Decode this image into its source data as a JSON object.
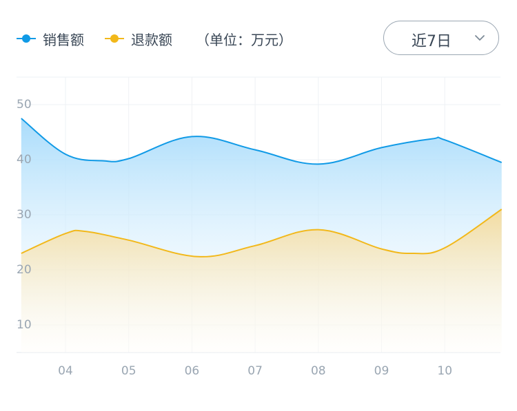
{
  "legend": {
    "sales_label": "销售额",
    "refund_label": "退款额",
    "unit_note": "（单位：万元）"
  },
  "range_select": {
    "value": "近7日",
    "icon": "chevron-down-icon"
  },
  "colors": {
    "sales": "#109ae6",
    "refund": "#f2b81a",
    "axis_text": "#9aa6b2",
    "grid": "#eef1f4"
  },
  "chart_data": {
    "type": "area",
    "categories": [
      "04",
      "05",
      "06",
      "07",
      "08",
      "09",
      "10"
    ],
    "ylim": [
      5,
      55
    ],
    "yticks": [
      10,
      20,
      30,
      40,
      50
    ],
    "grid": true,
    "legend_position": "top-left",
    "series": [
      {
        "name": "销售额",
        "points": [
          [
            3.3,
            47.5
          ],
          [
            4.0,
            41.0
          ],
          [
            4.6,
            39.8
          ],
          [
            5.0,
            40.2
          ],
          [
            6.0,
            44.2
          ],
          [
            7.0,
            41.8
          ],
          [
            8.0,
            39.2
          ],
          [
            9.0,
            42.2
          ],
          [
            9.8,
            43.8
          ],
          [
            10.0,
            43.6
          ],
          [
            10.9,
            39.5
          ]
        ]
      },
      {
        "name": "退款额",
        "points": [
          [
            3.3,
            23.0
          ],
          [
            4.0,
            26.6
          ],
          [
            4.3,
            27.0
          ],
          [
            5.0,
            25.4
          ],
          [
            6.1,
            22.4
          ],
          [
            7.0,
            24.4
          ],
          [
            8.0,
            27.3
          ],
          [
            9.0,
            23.8
          ],
          [
            9.5,
            23.0
          ],
          [
            10.0,
            24.0
          ],
          [
            10.9,
            31.0
          ]
        ]
      }
    ]
  }
}
